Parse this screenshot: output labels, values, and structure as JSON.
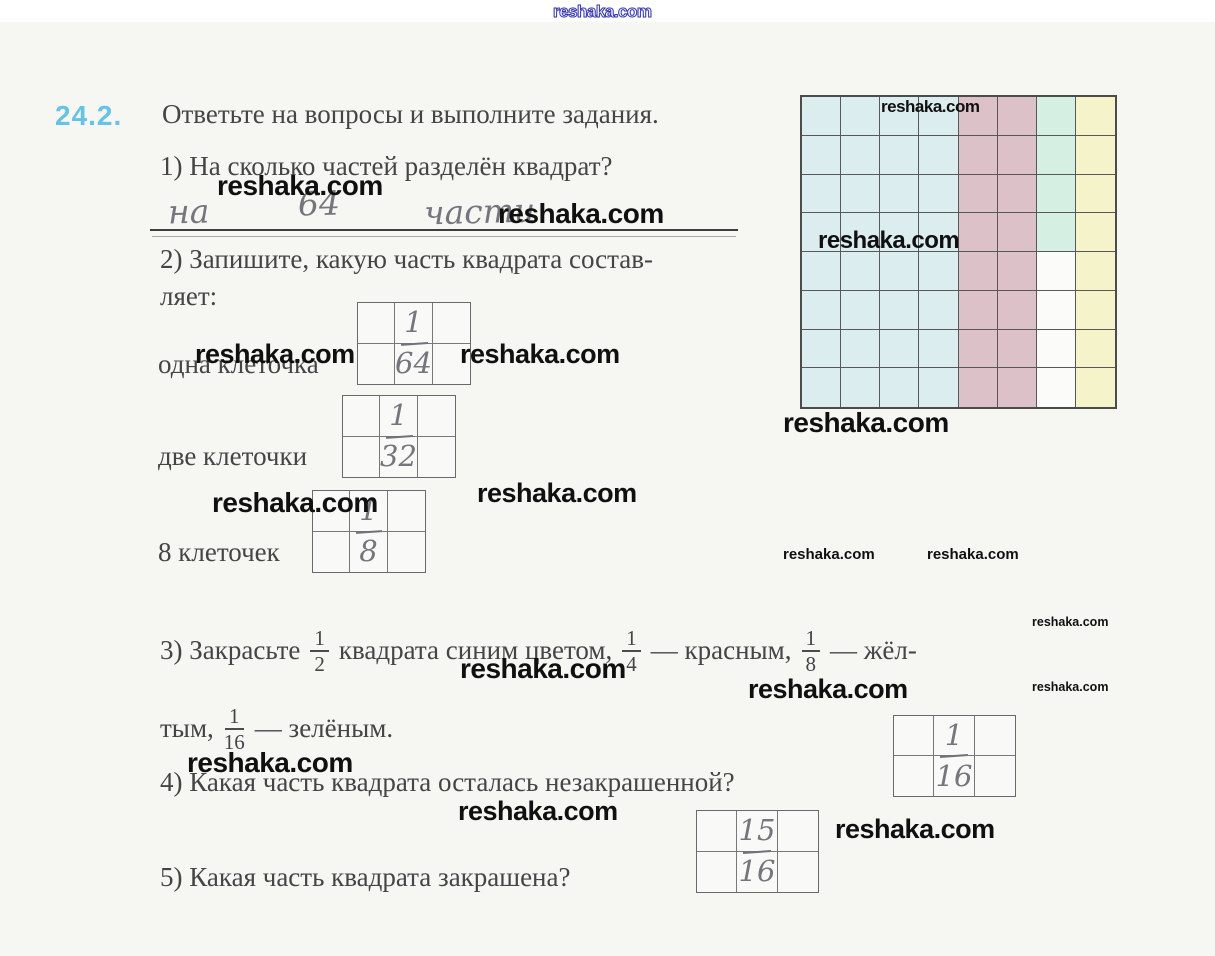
{
  "page": {
    "watermark": "reshaka.com"
  },
  "exercise": {
    "number": "24.2.",
    "title": "Ответьте на вопросы и выполните задания."
  },
  "q1": {
    "text": "1) На сколько частей разделён квадрат?",
    "answer": [
      "на",
      "64",
      "части"
    ]
  },
  "q2": {
    "line1": "2) Запишите, какую часть квадрата состав-",
    "line2": "ляет:",
    "items": [
      {
        "label": "одна клеточка",
        "num": "1",
        "den": "64"
      },
      {
        "label": "две клеточки",
        "num": "1",
        "den": "32"
      },
      {
        "label": "8 клеточек",
        "num": "1",
        "den": "8"
      }
    ]
  },
  "q3": {
    "start": "3) Закрасьте",
    "f1": {
      "num": "1",
      "den": "2"
    },
    "mid1": "квадрата синим цветом,",
    "f2": {
      "num": "1",
      "den": "4"
    },
    "mid2": "— красным,",
    "f3": {
      "num": "1",
      "den": "8"
    },
    "end": "— жёл-",
    "l2a": "тым,",
    "f4": {
      "num": "1",
      "den": "16"
    },
    "l2b": "— зелёным."
  },
  "q4": {
    "text": "4) Какая часть квадрата осталась незакрашенной?",
    "num": "1",
    "den": "16"
  },
  "q5": {
    "text": "5) Какая часть квадрата закрашена?",
    "num": "15",
    "den": "16"
  },
  "grid": {
    "rows": 8,
    "cols": 8,
    "colors": {
      "b": "#dcedef",
      "r": "#ddc1c9",
      "g": "#d5efe2",
      "y": "#f5f3c9",
      "n": "transparent"
    },
    "cells": [
      [
        "b",
        "b",
        "b",
        "b",
        "r",
        "r",
        "g",
        "y"
      ],
      [
        "b",
        "b",
        "b",
        "b",
        "r",
        "r",
        "g",
        "y"
      ],
      [
        "b",
        "b",
        "b",
        "b",
        "r",
        "r",
        "g",
        "y"
      ],
      [
        "b",
        "b",
        "b",
        "b",
        "r",
        "r",
        "g",
        "y"
      ],
      [
        "b",
        "b",
        "b",
        "b",
        "r",
        "r",
        "n",
        "y"
      ],
      [
        "b",
        "b",
        "b",
        "b",
        "r",
        "r",
        "n",
        "y"
      ],
      [
        "b",
        "b",
        "b",
        "b",
        "r",
        "r",
        "n",
        "y"
      ],
      [
        "b",
        "b",
        "b",
        "b",
        "r",
        "r",
        "n",
        "y"
      ]
    ]
  }
}
